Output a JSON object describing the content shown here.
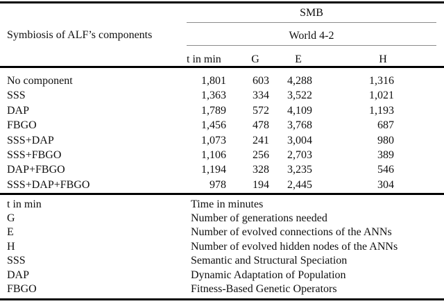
{
  "table": {
    "stub_header": "Symbiosis of ALF’s components",
    "group_header": "SMB",
    "subgroup_header": "World 4-2",
    "columns": [
      "t in min",
      "G",
      "E",
      "H"
    ],
    "rows": [
      {
        "label": "No component",
        "values": [
          "1,801",
          "603",
          "4,288",
          "1,316"
        ]
      },
      {
        "label": "SSS",
        "values": [
          "1,363",
          "334",
          "3,522",
          "1,021"
        ]
      },
      {
        "label": "DAP",
        "values": [
          "1,789",
          "572",
          "4,109",
          "1,193"
        ]
      },
      {
        "label": "FBGO",
        "values": [
          "1,456",
          "478",
          "3,768",
          "687"
        ]
      },
      {
        "label": "SSS+DAP",
        "values": [
          "1,073",
          "241",
          "3,004",
          "980"
        ]
      },
      {
        "label": "SSS+FBGO",
        "values": [
          "1,106",
          "256",
          "2,703",
          "389"
        ]
      },
      {
        "label": "DAP+FBGO",
        "values": [
          "1,194",
          "328",
          "3,235",
          "546"
        ]
      },
      {
        "label": "SSS+DAP+FBGO",
        "values": [
          "978",
          "194",
          "2,445",
          "304"
        ]
      }
    ]
  },
  "legend": {
    "entries": [
      {
        "term": "t in min",
        "description": "Time in minutes"
      },
      {
        "term": "G",
        "description": "Number of generations needed"
      },
      {
        "term": "E",
        "description": "Number of evolved connections of the ANNs"
      },
      {
        "term": "H",
        "description": "Number of evolved hidden nodes of the ANNs"
      },
      {
        "term": "SSS",
        "description": "Semantic and Structural Speciation"
      },
      {
        "term": "DAP",
        "description": "Dynamic Adaptation of Population"
      },
      {
        "term": "FBGO",
        "description": "Fitness-Based Genetic Operators"
      }
    ]
  },
  "colors": {
    "background": "#ffffff",
    "text": "#0f0f0f",
    "rule_thick": "#000000",
    "rule_thin": "#8a8a8a"
  }
}
